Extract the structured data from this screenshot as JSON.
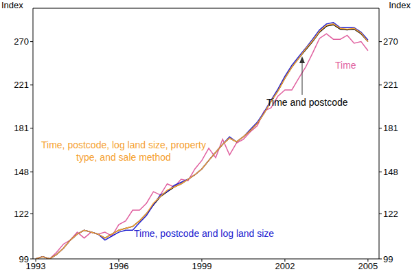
{
  "chart_data": {
    "type": "line",
    "y_label": "Index",
    "log": "y",
    "grid": false,
    "tick_labels": true,
    "x": [
      1993,
      1993.25,
      1993.5,
      1993.75,
      1994,
      1994.25,
      1994.5,
      1994.75,
      1995,
      1995.25,
      1995.5,
      1995.75,
      1996,
      1996.25,
      1996.5,
      1996.75,
      1997,
      1997.25,
      1997.5,
      1997.75,
      1998,
      1998.25,
      1998.5,
      1998.75,
      1999,
      1999.25,
      1999.5,
      1999.75,
      2000,
      2000.25,
      2000.5,
      2000.75,
      2001,
      2001.25,
      2001.5,
      2001.75,
      2002,
      2002.25,
      2002.5,
      2002.75,
      2003,
      2003.25,
      2003.5,
      2003.75,
      2004,
      2004.25,
      2004.5,
      2004.75,
      2005
    ],
    "xlim": [
      1992.9,
      2005.4
    ],
    "xticks": [
      1993,
      1996,
      1999,
      2002,
      2005
    ],
    "ylim": [
      99,
      315
    ],
    "yticks": [
      99,
      122,
      148,
      181,
      221,
      270
    ],
    "series": [
      {
        "name": "Time",
        "color": "#e0609f",
        "values": [
          99,
          100,
          99,
          102,
          106,
          108,
          112,
          109,
          112,
          111,
          112,
          110,
          116,
          118,
          124,
          124,
          128,
          135,
          133,
          140,
          138,
          143,
          142,
          150,
          156,
          165,
          158,
          172,
          160,
          169,
          172,
          178,
          183,
          196,
          199,
          210,
          216,
          216,
          228,
          240,
          256,
          274,
          280,
          273,
          273,
          278,
          268,
          270,
          259
        ]
      },
      {
        "name": "Time and postcode",
        "color": "#000000",
        "values": [
          99,
          100,
          99,
          101,
          104,
          108,
          111,
          113,
          112,
          111,
          109,
          111,
          113,
          114,
          115,
          118,
          122,
          127,
          132,
          135,
          138,
          140,
          143,
          146,
          150,
          156,
          162,
          168,
          173,
          170,
          174,
          179,
          185,
          194,
          205,
          215,
          228,
          240,
          250,
          260,
          270,
          282,
          290,
          292,
          286,
          285,
          286,
          280,
          270
        ]
      },
      {
        "name": "Time, postcode and log land size",
        "color": "#2020d0",
        "values": [
          99,
          100,
          99,
          101,
          104,
          108,
          111,
          113,
          112,
          111,
          108,
          110,
          112,
          113,
          113,
          117,
          121,
          127,
          133,
          135,
          139,
          141,
          143,
          146,
          150,
          156,
          162,
          168,
          174,
          170,
          174,
          180,
          186,
          195,
          206,
          217,
          230,
          242,
          252,
          262,
          273,
          285,
          293,
          295,
          288,
          288,
          288,
          282,
          272
        ]
      },
      {
        "name": "Time, postcode, log land size, property type, and sale method",
        "color": "#f5a030",
        "values": [
          99,
          100,
          99,
          101,
          104,
          108,
          111,
          113,
          112,
          111,
          109,
          111,
          113,
          114,
          115,
          118,
          122,
          128,
          132,
          136,
          138,
          140,
          143,
          146,
          150,
          156,
          162,
          168,
          173,
          170,
          174,
          179,
          185,
          194,
          205,
          215,
          228,
          240,
          250,
          261,
          271,
          283,
          291,
          293,
          287,
          286,
          287,
          281,
          270
        ]
      }
    ]
  }
}
